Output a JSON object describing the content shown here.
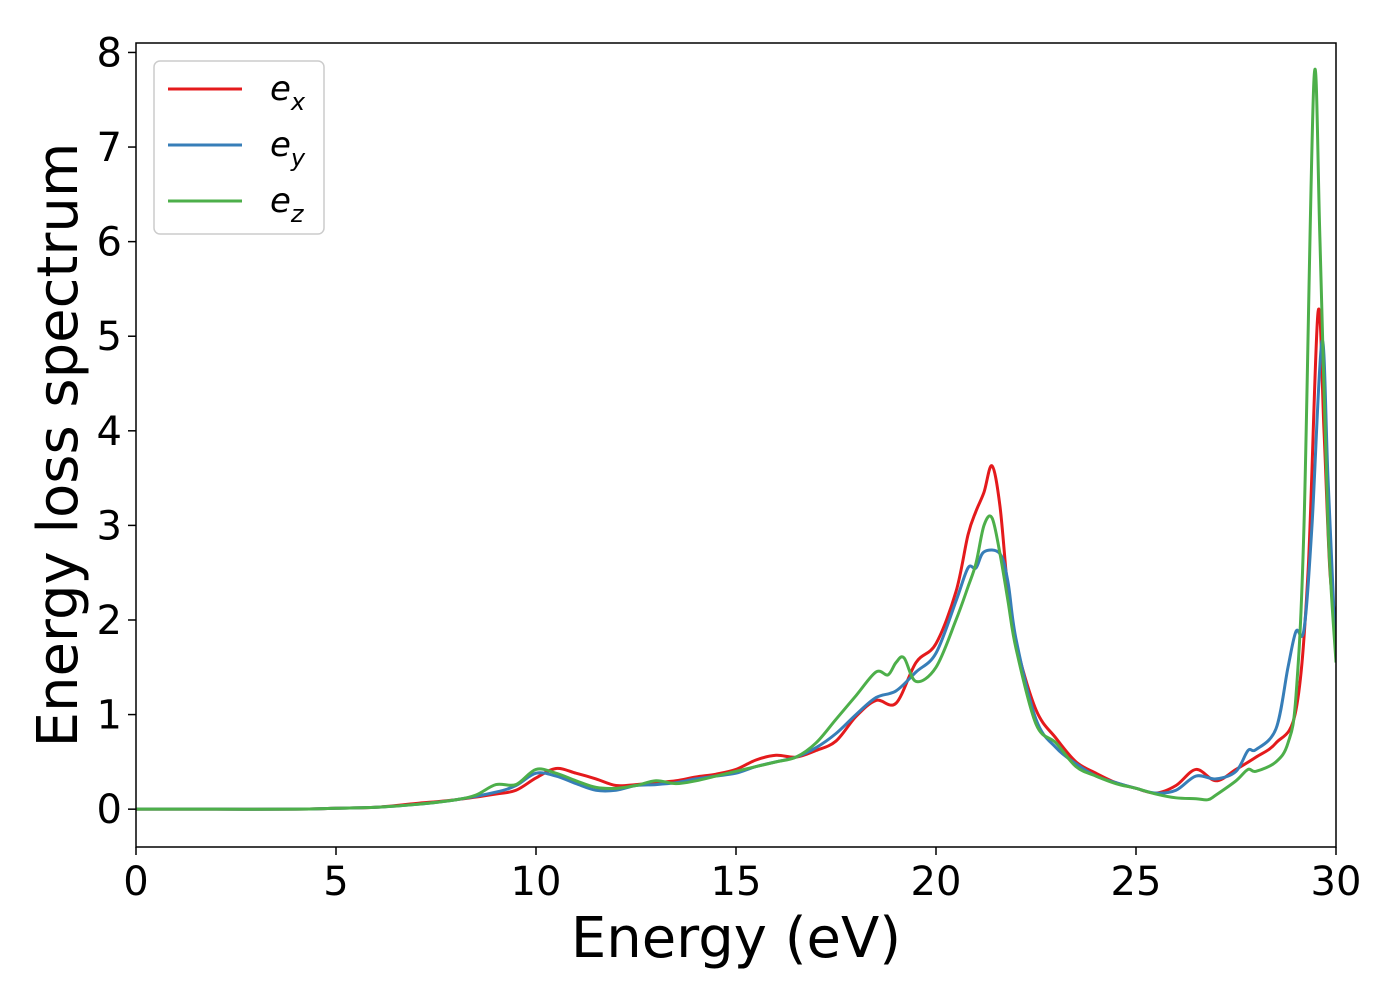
{
  "chart_data": {
    "type": "line",
    "xlabel": "Energy (eV)",
    "ylabel": "Energy loss spectrum",
    "xlim": [
      0,
      30
    ],
    "ylim": [
      -0.4,
      8.1
    ],
    "xticks": [
      0,
      5,
      10,
      15,
      20,
      25,
      30
    ],
    "yticks": [
      0,
      1,
      2,
      3,
      4,
      5,
      6,
      7,
      8
    ],
    "grid": false,
    "legend": "top-left",
    "series": [
      {
        "name": "e_x",
        "label_base": "e",
        "label_sub": "x",
        "color": "#e41a1c",
        "points": [
          [
            0,
            0
          ],
          [
            2,
            0
          ],
          [
            4,
            0
          ],
          [
            5,
            0.01
          ],
          [
            6,
            0.02
          ],
          [
            7,
            0.06
          ],
          [
            8,
            0.1
          ],
          [
            9,
            0.16
          ],
          [
            9.5,
            0.2
          ],
          [
            10,
            0.33
          ],
          [
            10.5,
            0.43
          ],
          [
            11,
            0.38
          ],
          [
            11.5,
            0.32
          ],
          [
            12,
            0.25
          ],
          [
            12.5,
            0.26
          ],
          [
            13,
            0.28
          ],
          [
            13.5,
            0.3
          ],
          [
            14,
            0.34
          ],
          [
            14.5,
            0.37
          ],
          [
            15,
            0.42
          ],
          [
            15.5,
            0.52
          ],
          [
            16,
            0.57
          ],
          [
            16.5,
            0.55
          ],
          [
            17,
            0.62
          ],
          [
            17.5,
            0.72
          ],
          [
            18,
            0.98
          ],
          [
            18.5,
            1.15
          ],
          [
            19,
            1.12
          ],
          [
            19.5,
            1.55
          ],
          [
            20,
            1.75
          ],
          [
            20.5,
            2.3
          ],
          [
            20.8,
            2.9
          ],
          [
            21,
            3.15
          ],
          [
            21.2,
            3.35
          ],
          [
            21.4,
            3.63
          ],
          [
            21.6,
            3.2
          ],
          [
            21.8,
            2.3
          ],
          [
            22,
            1.75
          ],
          [
            22.5,
            1.05
          ],
          [
            23,
            0.75
          ],
          [
            23.5,
            0.5
          ],
          [
            24,
            0.38
          ],
          [
            24.5,
            0.28
          ],
          [
            25,
            0.22
          ],
          [
            25.5,
            0.17
          ],
          [
            26,
            0.25
          ],
          [
            26.5,
            0.42
          ],
          [
            27,
            0.3
          ],
          [
            27.5,
            0.42
          ],
          [
            28,
            0.55
          ],
          [
            28.5,
            0.7
          ],
          [
            29,
            1.05
          ],
          [
            29.3,
            2.5
          ],
          [
            29.55,
            5.25
          ],
          [
            29.7,
            4.0
          ],
          [
            29.85,
            2.5
          ],
          [
            30,
            2.0
          ]
        ]
      },
      {
        "name": "e_y",
        "label_base": "e",
        "label_sub": "y",
        "color": "#377eb8",
        "points": [
          [
            0,
            0
          ],
          [
            2,
            0
          ],
          [
            4,
            0
          ],
          [
            5,
            0.01
          ],
          [
            6,
            0.02
          ],
          [
            7,
            0.05
          ],
          [
            8,
            0.1
          ],
          [
            9,
            0.18
          ],
          [
            9.5,
            0.25
          ],
          [
            10,
            0.38
          ],
          [
            10.5,
            0.35
          ],
          [
            11,
            0.27
          ],
          [
            11.5,
            0.2
          ],
          [
            12,
            0.2
          ],
          [
            12.5,
            0.25
          ],
          [
            13,
            0.26
          ],
          [
            13.5,
            0.28
          ],
          [
            14,
            0.32
          ],
          [
            14.5,
            0.35
          ],
          [
            15,
            0.38
          ],
          [
            15.5,
            0.45
          ],
          [
            16,
            0.5
          ],
          [
            16.5,
            0.55
          ],
          [
            17,
            0.65
          ],
          [
            17.5,
            0.8
          ],
          [
            18,
            1.0
          ],
          [
            18.5,
            1.18
          ],
          [
            19,
            1.25
          ],
          [
            19.5,
            1.45
          ],
          [
            20,
            1.65
          ],
          [
            20.5,
            2.2
          ],
          [
            20.8,
            2.55
          ],
          [
            21,
            2.55
          ],
          [
            21.2,
            2.72
          ],
          [
            21.6,
            2.7
          ],
          [
            21.8,
            2.4
          ],
          [
            22,
            1.8
          ],
          [
            22.5,
            0.95
          ],
          [
            23,
            0.65
          ],
          [
            23.5,
            0.48
          ],
          [
            24,
            0.35
          ],
          [
            24.5,
            0.28
          ],
          [
            25,
            0.22
          ],
          [
            25.5,
            0.17
          ],
          [
            26,
            0.2
          ],
          [
            26.5,
            0.35
          ],
          [
            27,
            0.32
          ],
          [
            27.5,
            0.4
          ],
          [
            27.8,
            0.62
          ],
          [
            28,
            0.63
          ],
          [
            28.5,
            0.85
          ],
          [
            28.8,
            1.5
          ],
          [
            29,
            1.88
          ],
          [
            29.2,
            1.9
          ],
          [
            29.4,
            3.0
          ],
          [
            29.65,
            4.95
          ],
          [
            29.8,
            3.5
          ],
          [
            30,
            1.6
          ]
        ]
      },
      {
        "name": "e_z",
        "label_base": "e",
        "label_sub": "z",
        "color": "#4daf4a",
        "points": [
          [
            0,
            0
          ],
          [
            2,
            0
          ],
          [
            4,
            0
          ],
          [
            5,
            0.01
          ],
          [
            6,
            0.02
          ],
          [
            7,
            0.05
          ],
          [
            8,
            0.1
          ],
          [
            8.5,
            0.15
          ],
          [
            9,
            0.26
          ],
          [
            9.5,
            0.26
          ],
          [
            10,
            0.42
          ],
          [
            10.5,
            0.38
          ],
          [
            11,
            0.3
          ],
          [
            11.5,
            0.23
          ],
          [
            12,
            0.22
          ],
          [
            12.5,
            0.25
          ],
          [
            13,
            0.3
          ],
          [
            13.5,
            0.27
          ],
          [
            14,
            0.3
          ],
          [
            14.5,
            0.35
          ],
          [
            15,
            0.4
          ],
          [
            15.5,
            0.45
          ],
          [
            16,
            0.5
          ],
          [
            16.5,
            0.55
          ],
          [
            17,
            0.7
          ],
          [
            17.5,
            0.95
          ],
          [
            18,
            1.2
          ],
          [
            18.5,
            1.45
          ],
          [
            18.8,
            1.42
          ],
          [
            19,
            1.55
          ],
          [
            19.2,
            1.6
          ],
          [
            19.5,
            1.35
          ],
          [
            20,
            1.5
          ],
          [
            20.5,
            2.0
          ],
          [
            20.8,
            2.35
          ],
          [
            21,
            2.6
          ],
          [
            21.2,
            3.0
          ],
          [
            21.4,
            3.08
          ],
          [
            21.6,
            2.7
          ],
          [
            21.8,
            2.2
          ],
          [
            22,
            1.7
          ],
          [
            22.5,
            0.9
          ],
          [
            23,
            0.7
          ],
          [
            23.5,
            0.45
          ],
          [
            24,
            0.35
          ],
          [
            24.5,
            0.27
          ],
          [
            25,
            0.22
          ],
          [
            25.5,
            0.16
          ],
          [
            26,
            0.12
          ],
          [
            26.5,
            0.11
          ],
          [
            26.8,
            0.1
          ],
          [
            27,
            0.15
          ],
          [
            27.5,
            0.3
          ],
          [
            27.8,
            0.42
          ],
          [
            28,
            0.4
          ],
          [
            28.5,
            0.5
          ],
          [
            28.8,
            0.7
          ],
          [
            29,
            1.2
          ],
          [
            29.2,
            3.0
          ],
          [
            29.45,
            7.72
          ],
          [
            29.6,
            6.0
          ],
          [
            29.8,
            3.0
          ],
          [
            30,
            1.55
          ]
        ]
      }
    ]
  }
}
